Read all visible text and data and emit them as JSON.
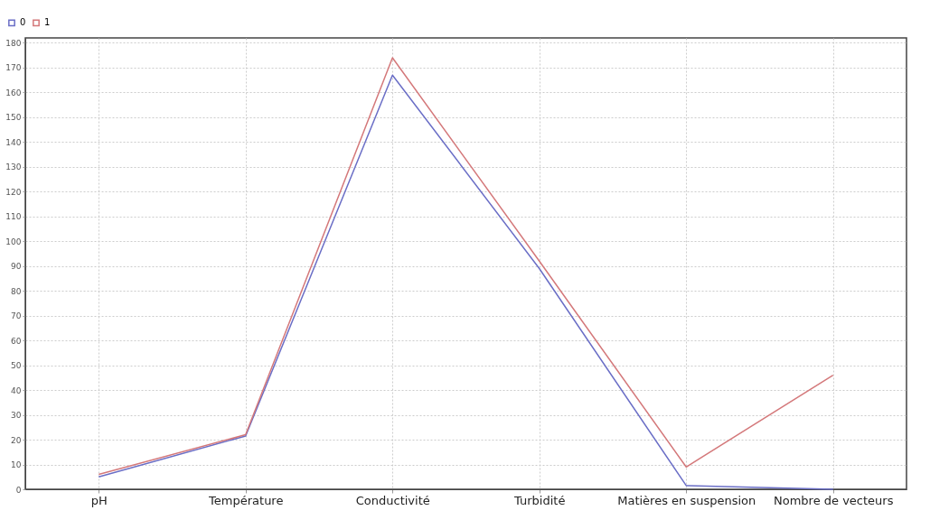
{
  "chart_data": {
    "type": "line",
    "categories": [
      "pH",
      "Température",
      "Conductivité",
      "Turbidité",
      "Matières en suspension",
      "Nombre de vecteurs"
    ],
    "series": [
      {
        "name": "0",
        "color": "#6a6ec6",
        "values": [
          5,
          21.5,
          167,
          89,
          1.5,
          0
        ]
      },
      {
        "name": "1",
        "color": "#d4787a",
        "values": [
          6,
          22,
          174,
          92,
          9,
          46
        ]
      }
    ],
    "ylim": [
      0,
      182
    ],
    "yticks": [
      0,
      10,
      20,
      30,
      40,
      50,
      60,
      70,
      80,
      90,
      100,
      110,
      120,
      130,
      140,
      150,
      160,
      170,
      180
    ],
    "grid": true,
    "legend": "top left",
    "marker": "none",
    "line_style": "solid"
  }
}
